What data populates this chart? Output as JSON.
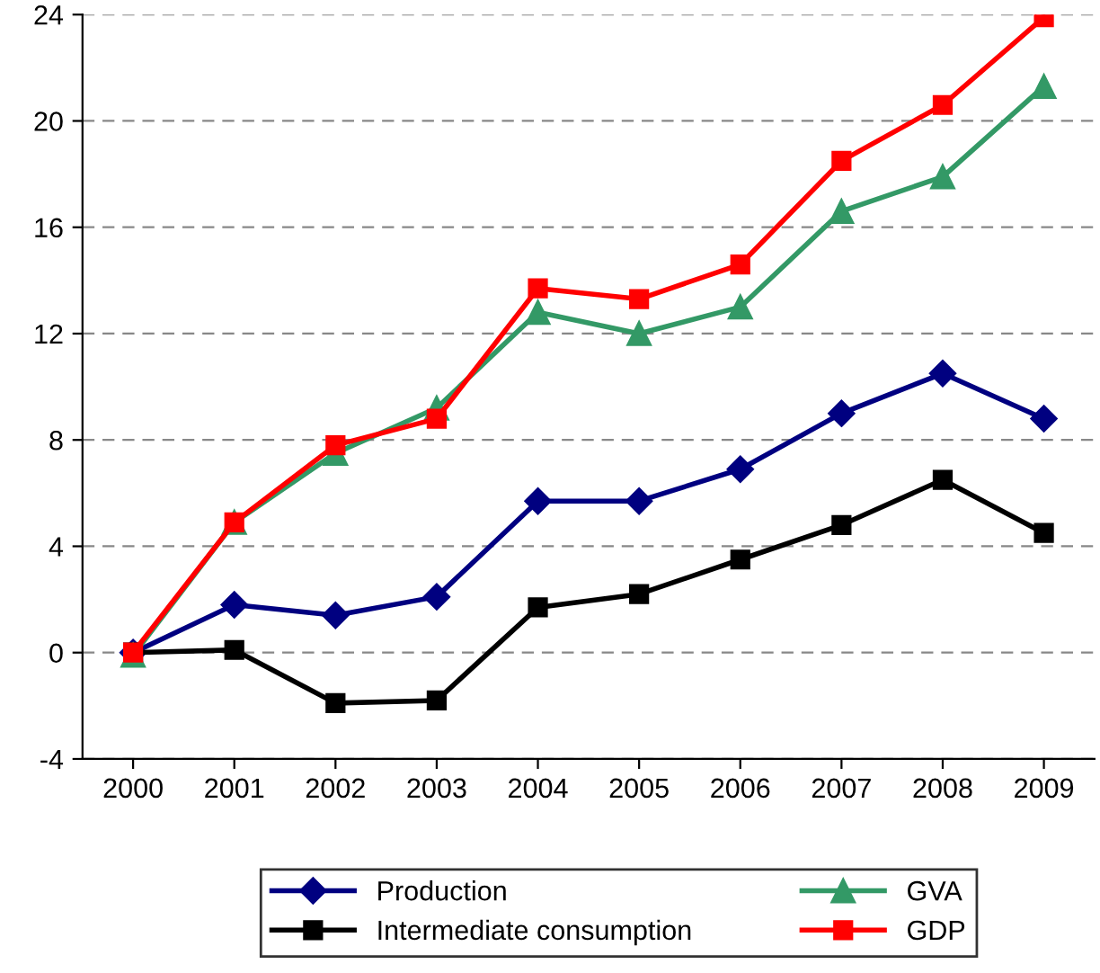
{
  "chart_data": {
    "type": "line",
    "categories": [
      "2000",
      "2001",
      "2002",
      "2003",
      "2004",
      "2005",
      "2006",
      "2007",
      "2008",
      "2009"
    ],
    "series": [
      {
        "name": "Production",
        "color": "#000080",
        "marker": "diamond",
        "values": [
          0,
          1.8,
          1.4,
          2.1,
          5.7,
          5.7,
          6.9,
          9.0,
          10.5,
          8.8
        ]
      },
      {
        "name": "Intermediate consumption",
        "color": "#000000",
        "marker": "square",
        "values": [
          0,
          0.1,
          -1.9,
          -1.8,
          1.7,
          2.2,
          3.5,
          4.8,
          6.5,
          4.5
        ]
      },
      {
        "name": "GVA",
        "color": "#339966",
        "marker": "triangle",
        "values": [
          -0.1,
          4.9,
          7.5,
          9.2,
          12.8,
          12.0,
          13.0,
          16.6,
          17.9,
          21.3
        ]
      },
      {
        "name": "GDP",
        "color": "#ff0000",
        "marker": "square",
        "values": [
          0,
          4.9,
          7.8,
          8.8,
          13.7,
          13.3,
          14.6,
          18.5,
          20.6,
          23.9
        ]
      }
    ],
    "ylim": [
      -4,
      24
    ],
    "yticks": [
      -4,
      0,
      4,
      8,
      12,
      16,
      20,
      24
    ],
    "grid": "y",
    "legend": "bottom",
    "line_style": "solid"
  }
}
